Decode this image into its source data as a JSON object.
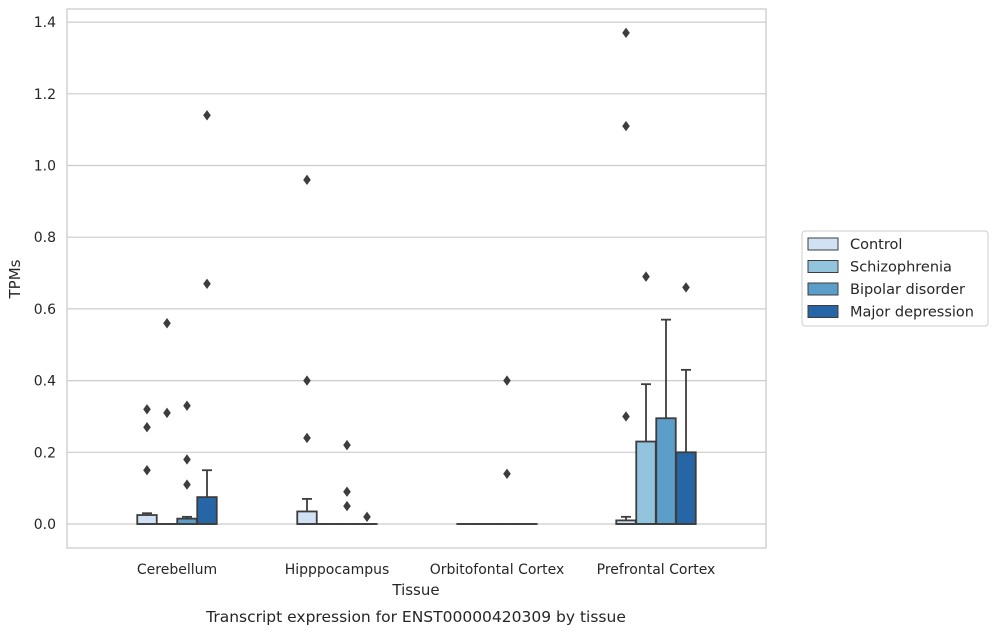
{
  "chart_data": {
    "type": "box",
    "xlabel": "Tissue",
    "ylabel": "TPMs",
    "caption": "Transcript expression for ENST00000420309 by tissue",
    "ylim": [
      -0.065,
      1.44
    ],
    "yticks": [
      0.0,
      0.2,
      0.4,
      0.6,
      0.8,
      1.0,
      1.2,
      1.4
    ],
    "ytick_labels": [
      "0.0",
      "0.2",
      "0.4",
      "0.6",
      "0.8",
      "1.0",
      "1.2",
      "1.4"
    ],
    "grid": "horizontal",
    "legend_position": "right",
    "categories": [
      "Cerebellum",
      "Hipppocampus",
      "Orbitofontal Cortex",
      "Prefrontal Cortex"
    ],
    "series": [
      {
        "name": "Control",
        "color": "#cfe1f2",
        "boxes": [
          {
            "q1": 0.0,
            "median": 0.0,
            "q3": 0.025,
            "whisker_low": 0.0,
            "whisker_high": 0.03,
            "outliers": [
              0.15,
              0.27,
              0.32
            ]
          },
          {
            "q1": 0.0,
            "median": 0.0,
            "q3": 0.035,
            "whisker_low": 0.0,
            "whisker_high": 0.07,
            "outliers": [
              0.24,
              0.4,
              0.96
            ]
          },
          {
            "q1": 0.0,
            "median": 0.0,
            "q3": 0.0,
            "whisker_low": 0.0,
            "whisker_high": 0.0,
            "outliers": []
          },
          {
            "q1": 0.0,
            "median": 0.0,
            "q3": 0.01,
            "whisker_low": 0.0,
            "whisker_high": 0.02,
            "outliers": [
              0.3,
              1.11,
              1.37
            ]
          }
        ]
      },
      {
        "name": "Schizophrenia",
        "color": "#93c4de",
        "boxes": [
          {
            "q1": 0.0,
            "median": 0.0,
            "q3": 0.0,
            "whisker_low": 0.0,
            "whisker_high": 0.0,
            "outliers": [
              0.31,
              0.56
            ]
          },
          {
            "q1": 0.0,
            "median": 0.0,
            "q3": 0.0,
            "whisker_low": 0.0,
            "whisker_high": 0.0,
            "outliers": []
          },
          {
            "q1": 0.0,
            "median": 0.0,
            "q3": 0.0,
            "whisker_low": 0.0,
            "whisker_high": 0.0,
            "outliers": []
          },
          {
            "q1": 0.0,
            "median": 0.0,
            "q3": 0.23,
            "whisker_low": 0.0,
            "whisker_high": 0.39,
            "outliers": [
              0.69
            ]
          }
        ]
      },
      {
        "name": "Bipolar disorder",
        "color": "#5a9ec9",
        "boxes": [
          {
            "q1": 0.0,
            "median": 0.0,
            "q3": 0.015,
            "whisker_low": 0.0,
            "whisker_high": 0.02,
            "outliers": [
              0.11,
              0.18,
              0.33
            ]
          },
          {
            "q1": 0.0,
            "median": 0.0,
            "q3": 0.0,
            "whisker_low": 0.0,
            "whisker_high": 0.0,
            "outliers": [
              0.05,
              0.09,
              0.22
            ]
          },
          {
            "q1": 0.0,
            "median": 0.0,
            "q3": 0.0,
            "whisker_low": 0.0,
            "whisker_high": 0.0,
            "outliers": [
              0.14,
              0.4
            ]
          },
          {
            "q1": 0.0,
            "median": 0.0,
            "q3": 0.295,
            "whisker_low": 0.0,
            "whisker_high": 0.57,
            "outliers": []
          }
        ]
      },
      {
        "name": "Major depression",
        "color": "#2666a6",
        "boxes": [
          {
            "q1": 0.0,
            "median": 0.0,
            "q3": 0.075,
            "whisker_low": 0.0,
            "whisker_high": 0.15,
            "outliers": [
              0.67,
              1.14
            ]
          },
          {
            "q1": 0.0,
            "median": 0.0,
            "q3": 0.0,
            "whisker_low": 0.0,
            "whisker_high": 0.0,
            "outliers": [
              0.02
            ]
          },
          {
            "q1": 0.0,
            "median": 0.0,
            "q3": 0.0,
            "whisker_low": 0.0,
            "whisker_high": 0.0,
            "outliers": []
          },
          {
            "q1": 0.0,
            "median": 0.0,
            "q3": 0.2,
            "whisker_low": 0.0,
            "whisker_high": 0.43,
            "outliers": [
              0.66
            ]
          }
        ]
      }
    ]
  },
  "colors": {
    "box_edge": "#3d3d3d",
    "grid": "#cccccc",
    "frame": "#cccccc",
    "outlier": "#3d3d3d"
  }
}
